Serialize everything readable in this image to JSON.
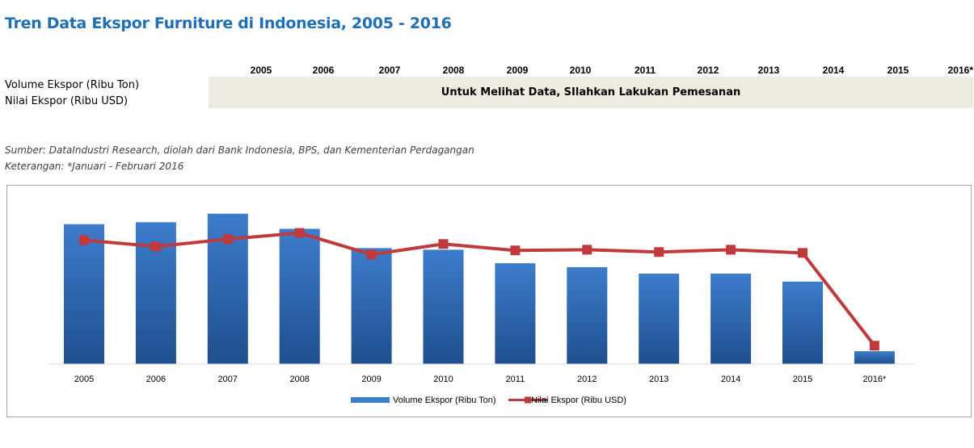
{
  "title": "Tren Data Ekspor Furniture di Indonesia, 2005 - 2016",
  "table": {
    "years": [
      "2005",
      "2006",
      "2007",
      "2008",
      "2009",
      "2010",
      "2011",
      "2012",
      "2013",
      "2014",
      "2015",
      "2016*"
    ],
    "rows": [
      "Volume Ekspor (Ribu Ton)",
      "Nilai Ekspor (Ribu USD)"
    ],
    "notice": "Untuk Melihat Data, SIlahkan Lakukan Pemesanan"
  },
  "source": "Sumber: DataIndustri Research, diolah dari Bank Indonesia, BPS, dan Kementerian Perdagangan",
  "remark": "Keterangan: *Januari - Februari 2016",
  "colors": {
    "bar": "#3d7ccc",
    "bar_dark": "#1f4f8e",
    "line": "#c0393b",
    "title": "#1f6fb7",
    "band": "#eeebe0"
  },
  "chart_data": {
    "type": "bar",
    "categories": [
      "2005",
      "2006",
      "2007",
      "2008",
      "2009",
      "2010",
      "2011",
      "2012",
      "2013",
      "2014",
      "2015",
      "2016*"
    ],
    "ylim": [
      0,
      100
    ],
    "series": [
      {
        "name": "Volume Ekspor (Ribu Ton)",
        "type": "bar",
        "values": [
          78.4,
          79.5,
          84.3,
          75.8,
          65.0,
          64.1,
          56.5,
          54.3,
          50.7,
          50.7,
          46.2,
          7.2
        ]
      },
      {
        "name": "Nilai Ekspor (Ribu USD)",
        "type": "line",
        "values": [
          69.5,
          65.9,
          70.0,
          73.5,
          61.4,
          67.3,
          63.7,
          64.1,
          62.8,
          64.1,
          62.3,
          10.3
        ]
      }
    ],
    "legend": "bottom",
    "grid": false
  }
}
